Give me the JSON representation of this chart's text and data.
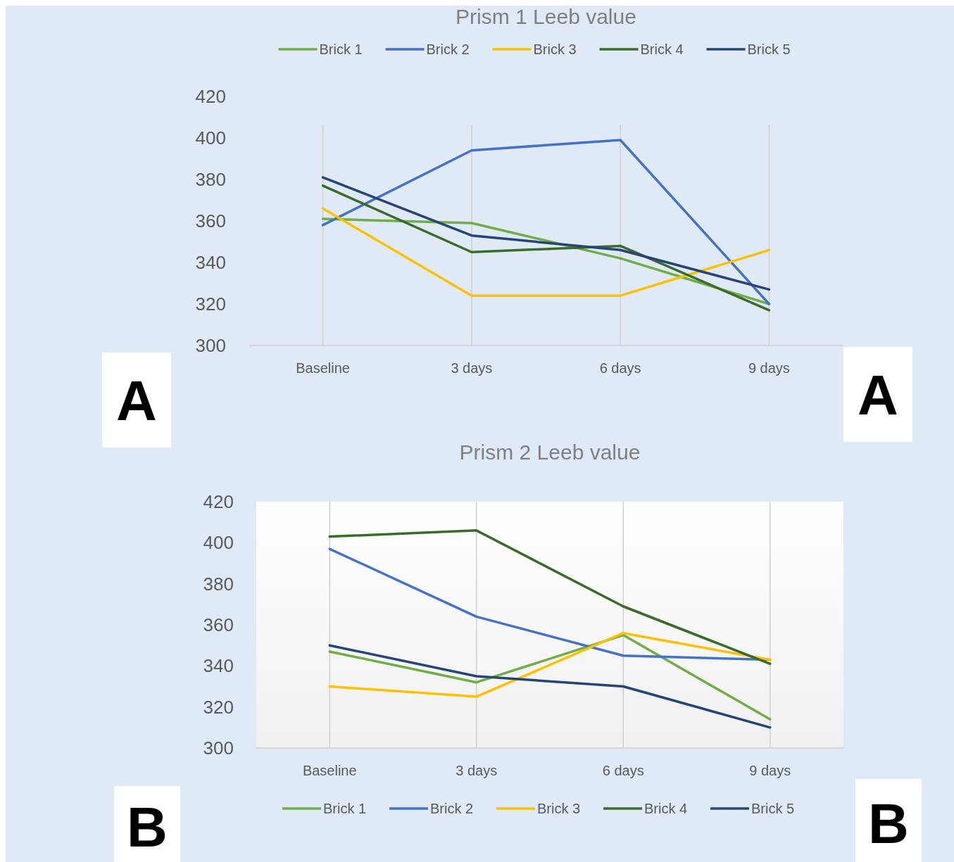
{
  "chart_data": [
    {
      "type": "line",
      "title": "Prism 1 Leeb value",
      "categories": [
        "Baseline",
        "3 days",
        "6 days",
        "9 days"
      ],
      "ylim": [
        300,
        420
      ],
      "yticks": [
        300,
        320,
        340,
        360,
        380,
        400,
        420
      ],
      "grid": "x",
      "legend": "top",
      "annotations": [
        "A",
        "A"
      ],
      "series": [
        {
          "name": "Brick 1",
          "color": "#70ad47",
          "values": [
            361,
            359,
            342,
            320
          ]
        },
        {
          "name": "Brick 2",
          "color": "#4472c4",
          "values": [
            358,
            394,
            399,
            320
          ]
        },
        {
          "name": "Brick 3",
          "color": "#ffc000",
          "values": [
            366,
            324,
            324,
            346
          ]
        },
        {
          "name": "Brick 4",
          "color": "#3b6b2a",
          "values": [
            377,
            345,
            348,
            317
          ]
        },
        {
          "name": "Brick 5",
          "color": "#264478",
          "values": [
            381,
            353,
            346,
            327
          ]
        }
      ]
    },
    {
      "type": "line",
      "title": "Prism 2 Leeb value",
      "categories": [
        "Baseline",
        "3 days",
        "6 days",
        "9 days"
      ],
      "ylim": [
        300,
        420
      ],
      "yticks": [
        300,
        320,
        340,
        360,
        380,
        400,
        420
      ],
      "grid": "x",
      "legend": "bottom",
      "annotations": [
        "B",
        "B"
      ],
      "series": [
        {
          "name": "Brick 1",
          "color": "#70ad47",
          "values": [
            347,
            332,
            355,
            314
          ]
        },
        {
          "name": "Brick 2",
          "color": "#4472c4",
          "values": [
            397,
            364,
            345,
            343
          ]
        },
        {
          "name": "Brick 3",
          "color": "#ffc000",
          "values": [
            330,
            325,
            356,
            343
          ]
        },
        {
          "name": "Brick 4",
          "color": "#3b6b2a",
          "values": [
            403,
            406,
            369,
            341
          ]
        },
        {
          "name": "Brick 5",
          "color": "#264478",
          "values": [
            350,
            335,
            330,
            310
          ]
        }
      ]
    }
  ]
}
